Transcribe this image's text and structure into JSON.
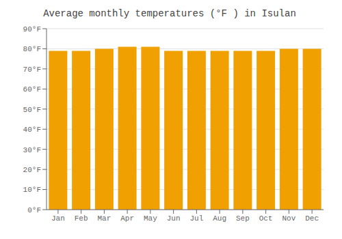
{
  "chart_data": {
    "type": "bar",
    "title": "Average monthly temperatures (°F ) in Isulan",
    "categories": [
      "Jan",
      "Feb",
      "Mar",
      "Apr",
      "May",
      "Jun",
      "Jul",
      "Aug",
      "Sep",
      "Oct",
      "Nov",
      "Dec"
    ],
    "values": [
      79,
      79,
      80,
      81,
      81,
      79,
      79,
      79,
      79,
      79,
      80,
      80
    ],
    "color": "#F0A000",
    "ylim": [
      0,
      90
    ],
    "yticks": [
      {
        "value": 0,
        "label": "0°F"
      },
      {
        "value": 10,
        "label": "10°F"
      },
      {
        "value": 20,
        "label": "20°F"
      },
      {
        "value": 30,
        "label": "30°F"
      },
      {
        "value": 40,
        "label": "40°F"
      },
      {
        "value": 50,
        "label": "50°F"
      },
      {
        "value": 60,
        "label": "60°F"
      },
      {
        "value": 70,
        "label": "70°F"
      },
      {
        "value": 80,
        "label": "80°F"
      },
      {
        "value": 90,
        "label": "90°F"
      }
    ],
    "grid": true
  }
}
